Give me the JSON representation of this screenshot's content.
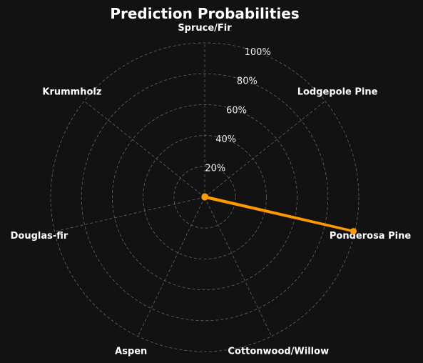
{
  "chart_data": {
    "type": "radar",
    "title": "Prediction Probabilities",
    "categories": [
      "Spruce/Fir",
      "Lodgepole Pine",
      "Ponderosa Pine",
      "Cottonwood/Willow",
      "Aspen",
      "Douglas-fir",
      "Krummholz"
    ],
    "series": [
      {
        "values": [
          0.5,
          0.5,
          99.0,
          0.0,
          0.0,
          0.0,
          0.0
        ]
      }
    ],
    "rlim": [
      0,
      100
    ],
    "rticks": [
      20,
      40,
      60,
      80,
      100
    ],
    "rtick_labels": [
      "20%",
      "40%",
      "60%",
      "80%",
      "100%"
    ],
    "grid": true,
    "colors": {
      "background": "#121212",
      "series": "#ff9900",
      "grid": "#666666",
      "text": "#ffffff"
    }
  }
}
